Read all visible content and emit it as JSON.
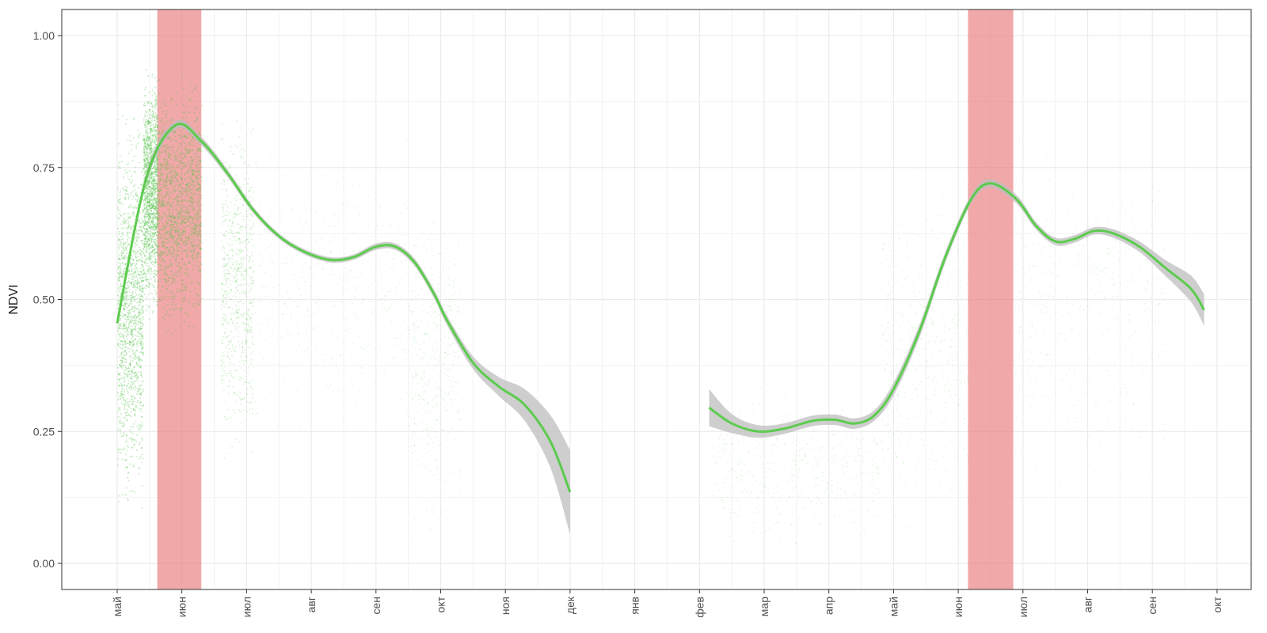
{
  "chart_data": {
    "type": "scatter",
    "title": "",
    "xlabel": "",
    "ylabel": "NDVI",
    "ylim": [
      -0.05,
      1.05
    ],
    "y_ticks": [
      0.0,
      0.25,
      0.5,
      0.75,
      1.0
    ],
    "y_tick_labels": [
      "0.00",
      "0.25",
      "0.50",
      "0.75",
      "1.00"
    ],
    "x_tick_labels": [
      "май",
      "июн",
      "июл",
      "авг",
      "сен",
      "окт",
      "ноя",
      "дек",
      "янв",
      "фев",
      "мар",
      "апр",
      "май",
      "июн",
      "июл",
      "авг",
      "сен",
      "окт"
    ],
    "x_unit": "months (0 = first май tick)",
    "xlim": [
      -0.8,
      17.2
    ],
    "grid": true,
    "legend": "none",
    "highlight_bands": [
      {
        "x_start": 0.62,
        "x_end": 1.3
      },
      {
        "x_start": 13.15,
        "x_end": 13.85
      }
    ],
    "smooth_series": [
      {
        "x": [
          0.0,
          0.45,
          0.9,
          1.3,
          1.7,
          2.1,
          2.5,
          2.9,
          3.3,
          3.65,
          4.0,
          4.3,
          4.6,
          4.9,
          5.1,
          5.5,
          5.9,
          6.3,
          6.7,
          7.0
        ],
        "y": [
          0.455,
          0.73,
          0.83,
          0.8,
          0.74,
          0.67,
          0.62,
          0.59,
          0.575,
          0.58,
          0.6,
          0.6,
          0.57,
          0.51,
          0.46,
          0.38,
          0.335,
          0.3,
          0.23,
          0.135
        ],
        "se": [
          0.0,
          0.01,
          0.008,
          0.008,
          0.007,
          0.006,
          0.005,
          0.005,
          0.005,
          0.005,
          0.006,
          0.006,
          0.007,
          0.008,
          0.009,
          0.012,
          0.018,
          0.03,
          0.05,
          0.08
        ]
      },
      {
        "x": [
          9.15,
          9.5,
          9.9,
          10.3,
          10.75,
          11.1,
          11.4,
          11.7,
          12.0,
          12.4,
          12.8,
          13.2,
          13.5,
          13.9,
          14.2,
          14.5,
          14.8,
          15.1,
          15.4,
          15.8,
          16.2,
          16.6,
          16.8
        ],
        "y": [
          0.295,
          0.265,
          0.25,
          0.255,
          0.27,
          0.272,
          0.265,
          0.28,
          0.33,
          0.44,
          0.58,
          0.69,
          0.72,
          0.69,
          0.64,
          0.61,
          0.615,
          0.63,
          0.625,
          0.6,
          0.56,
          0.52,
          0.48
        ],
        "se": [
          0.035,
          0.018,
          0.012,
          0.01,
          0.01,
          0.01,
          0.01,
          0.01,
          0.012,
          0.012,
          0.01,
          0.008,
          0.008,
          0.008,
          0.007,
          0.007,
          0.007,
          0.007,
          0.008,
          0.01,
          0.015,
          0.025,
          0.03
        ]
      }
    ],
    "scatter_point_clusters": [
      {
        "x_range": [
          0.0,
          0.4
        ],
        "y_range": [
          0.05,
          0.9
        ],
        "density": "high"
      },
      {
        "x_range": [
          0.4,
          0.62
        ],
        "y_range": [
          0.45,
          0.97
        ],
        "density": "high"
      },
      {
        "x_range": [
          0.62,
          1.3
        ],
        "y_range": [
          0.4,
          0.95
        ],
        "density": "high"
      },
      {
        "x_range": [
          1.6,
          2.1
        ],
        "y_range": [
          0.15,
          0.9
        ],
        "density": "medium"
      },
      {
        "x_range": [
          2.1,
          4.5
        ],
        "y_range": [
          0.2,
          0.85
        ],
        "density": "low"
      },
      {
        "x_range": [
          4.5,
          5.3
        ],
        "y_range": [
          0.0,
          0.75
        ],
        "density": "low"
      },
      {
        "x_range": [
          9.2,
          11.8
        ],
        "y_range": [
          0.0,
          0.35
        ],
        "density": "low"
      },
      {
        "x_range": [
          11.8,
          13.15
        ],
        "y_range": [
          0.0,
          0.8
        ],
        "density": "low"
      },
      {
        "x_range": [
          13.85,
          16.2
        ],
        "y_range": [
          0.1,
          0.85
        ],
        "density": "low"
      }
    ],
    "colors": {
      "smooth_line": "#5ccb4e",
      "confidence_band": "#bdbdbd",
      "points": "#4cc242",
      "highlight": "#e87a7a",
      "grid": "#ebebeb",
      "panel_border": "#333333"
    }
  }
}
